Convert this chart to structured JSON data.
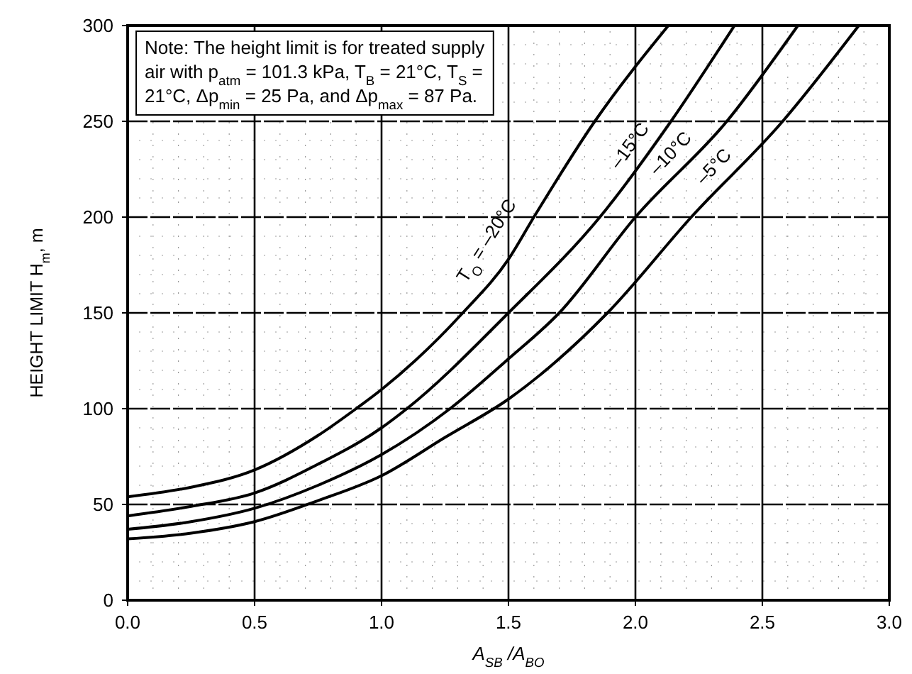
{
  "chart_data": {
    "type": "line",
    "xlabel": "A$_{SB}$ /A$_{BO}$",
    "ylabel": "HEIGHT LIMIT H$_{m}$, m",
    "xlim": [
      0,
      3
    ],
    "ylim": [
      0,
      300
    ],
    "xticks": [
      {
        "value": 0,
        "label": "0.0"
      },
      {
        "value": 0.5,
        "label": "0.5"
      },
      {
        "value": 1,
        "label": "1.0"
      },
      {
        "value": 1.5,
        "label": "1.5"
      },
      {
        "value": 2,
        "label": "2.0"
      },
      {
        "value": 2.5,
        "label": "2.5"
      },
      {
        "value": 3,
        "label": "3.0"
      }
    ],
    "yticks": [
      0,
      50,
      100,
      150,
      200,
      250,
      300
    ],
    "grid": true,
    "line_style": "solid",
    "annotations": [
      "Note: The height limit is for treated supply air with p$_{atm}$ = 101.3 kPa, T$_{B}$ = 21°C, T$_{S}$ = 21°C, Δp$_{min}$ = 25 Pa, and Δp$_{max}$ = 87 Pa."
    ],
    "series": [
      {
        "name": "T$_{O}$ = –20°C",
        "color": "#000000",
        "x": [
          0,
          0.25,
          0.5,
          0.75,
          0.9,
          1,
          1.32,
          1.5,
          1.6,
          1.84,
          2.13
        ],
        "values": [
          54,
          59,
          68,
          86,
          100,
          110,
          150,
          178,
          200,
          250,
          300
        ]
      },
      {
        "name": "–15°C",
        "color": "#000000",
        "x": [
          0,
          0.25,
          0.5,
          0.75,
          1,
          1.1,
          1.5,
          1.86,
          2.14,
          2.39
        ],
        "values": [
          44,
          49,
          56,
          71,
          90,
          100,
          150,
          200,
          250,
          300
        ]
      },
      {
        "name": "–10°C",
        "color": "#000000",
        "x": [
          0,
          0.25,
          0.5,
          0.75,
          1,
          1.27,
          1.5,
          1.7,
          2,
          2.36,
          2.64
        ],
        "values": [
          37,
          41,
          48,
          60,
          76,
          100,
          126,
          150,
          200,
          250,
          300
        ]
      },
      {
        "name": "–5°C",
        "color": "#000000",
        "x": [
          0,
          0.25,
          0.5,
          0.75,
          1,
          1.25,
          1.5,
          1.89,
          2.22,
          2.58,
          2.88
        ],
        "values": [
          32,
          35,
          41,
          52,
          65,
          85,
          105,
          150,
          200,
          250,
          300
        ]
      }
    ]
  }
}
